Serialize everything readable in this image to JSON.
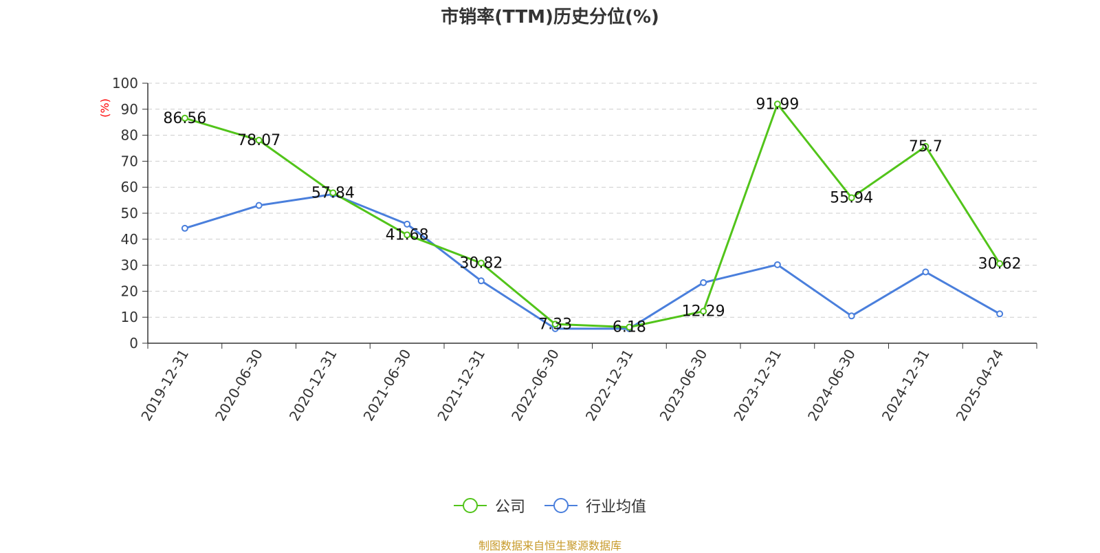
{
  "title": "市销率(TTM)历史分位(%)",
  "source": "制图数据来自恒生聚源数据库",
  "colors": {
    "company": "#52c41a",
    "industry": "#4a7fdc",
    "ylabel": "#ff0000",
    "grid": "#cccccc",
    "axis": "#333333",
    "source": "#c79a2a"
  },
  "chart_data": {
    "type": "line",
    "title": "市销率(TTM)历史分位(%)",
    "ylabel": "(%)",
    "xlabel": "",
    "ylim": [
      0,
      100
    ],
    "yticks": [
      0,
      10,
      20,
      30,
      40,
      50,
      60,
      70,
      80,
      90,
      100
    ],
    "grid": true,
    "legend_position": "bottom-center",
    "categories": [
      "2019-12-31",
      "2020-06-30",
      "2020-12-31",
      "2021-06-30",
      "2021-12-31",
      "2022-06-30",
      "2022-12-31",
      "2023-06-30",
      "2023-12-31",
      "2024-06-30",
      "2024-12-31",
      "2025-04-24"
    ],
    "series": [
      {
        "name": "公司",
        "color": "#52c41a",
        "values": [
          86.56,
          78.07,
          57.84,
          41.68,
          30.82,
          7.33,
          6.18,
          12.29,
          91.99,
          55.94,
          75.7,
          30.62
        ],
        "labels": [
          "86.56",
          "78.07",
          "57.84",
          "41.68",
          "30.82",
          "7.33",
          "6.18",
          "12.29",
          "91.99",
          "55.94",
          "75.7",
          "30.62"
        ]
      },
      {
        "name": "行业均值",
        "color": "#4a7fdc",
        "values": [
          44.2,
          53.0,
          57.3,
          45.8,
          24.0,
          5.6,
          5.6,
          23.3,
          30.2,
          10.5,
          27.4,
          11.3
        ]
      }
    ]
  }
}
